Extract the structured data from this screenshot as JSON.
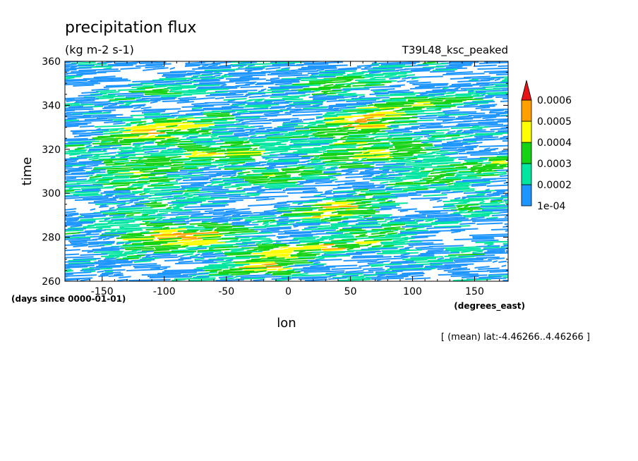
{
  "chart_data": {
    "type": "heatmap",
    "title": "precipitation flux",
    "units": "(kg m-2 s-1)",
    "run_id": "T39L48_ksc_peaked",
    "xlabel": "lon",
    "ylabel": "time",
    "x_units": "(degrees_east)",
    "y_units": "(days since 0000-01-01)",
    "footnote": "[ (mean) lat:-4.46266..4.46266 ]",
    "xlim": [
      -180,
      177
    ],
    "ylim": [
      260,
      360
    ],
    "x_ticks": [
      -150,
      -100,
      -50,
      0,
      50,
      100,
      150
    ],
    "x_tick_labels": [
      "-150",
      "-100",
      "-50",
      "0",
      "50",
      "100",
      "150"
    ],
    "y_ticks": [
      260,
      280,
      300,
      320,
      340,
      360
    ],
    "y_tick_labels": [
      "260",
      "280",
      "300",
      "320",
      "340",
      "360"
    ],
    "levels": [
      0.0001,
      0.0002,
      0.0003,
      0.0004,
      0.0005,
      0.0006
    ],
    "level_labels": [
      "1e-04",
      "0.0002",
      "0.0003",
      "0.0004",
      "0.0005",
      "0.0006"
    ],
    "colors": [
      "#1e96ff",
      "#00e6a0",
      "#14d214",
      "#ffff00",
      "#ffa000",
      "#e61414"
    ],
    "background": "#ffffff"
  }
}
